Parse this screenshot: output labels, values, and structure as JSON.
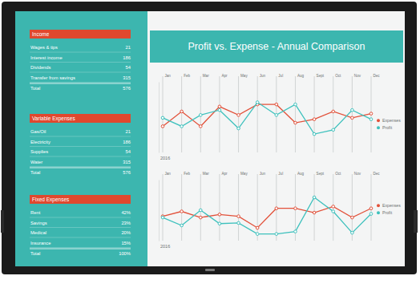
{
  "title": "Profit vs. Expense - Annual Comparison",
  "tables": [
    {
      "title": "Income",
      "rows": [
        [
          "Wages & tips",
          "21"
        ],
        [
          "Interest income",
          "186"
        ],
        [
          "Dividends",
          "54"
        ],
        [
          "Transfer from savings",
          "315"
        ]
      ],
      "total": [
        "Total",
        "576"
      ]
    },
    {
      "title": "Variable Expenses",
      "rows": [
        [
          "Gas/Oil",
          "21"
        ],
        [
          "Electricity",
          "186"
        ],
        [
          "Supplies",
          "54"
        ],
        [
          "Water",
          "315"
        ]
      ],
      "total": [
        "Total",
        "576"
      ]
    },
    {
      "title": "Fixed Expenses",
      "rows": [
        [
          "Rent",
          "42%"
        ],
        [
          "Savings",
          "23%"
        ],
        [
          "Medical",
          "20%"
        ],
        [
          "Insurance",
          "15%"
        ]
      ],
      "total": [
        "Total",
        "100%"
      ]
    }
  ],
  "chart_data": [
    {
      "type": "line",
      "categories": [
        "Jan",
        "Feb",
        "Mar",
        "Apr",
        "May",
        "Jun",
        "Jul",
        "Aug",
        "Sept",
        "Oct",
        "Nov",
        "Dec"
      ],
      "series": [
        {
          "name": "Expenses",
          "color": "#e2513a",
          "marker": "circle",
          "values": [
            37,
            58,
            37,
            65,
            53,
            68,
            68,
            42,
            47,
            58,
            49,
            55
          ]
        },
        {
          "name": "Profit",
          "color": "#3ec1bd",
          "marker": "circle",
          "values": [
            49,
            37,
            53,
            60,
            34,
            71,
            53,
            68,
            26,
            32,
            60,
            47
          ]
        }
      ],
      "ylim": [
        0,
        100
      ],
      "tick_labels": "x",
      "grid": true,
      "legend": "right",
      "annotation": "2016"
    },
    {
      "type": "line",
      "categories": [
        "Jan",
        "Feb",
        "Mar",
        "Apr",
        "May",
        "Jun",
        "Jul",
        "Aug",
        "Sept",
        "Oct",
        "Nov",
        "Dec"
      ],
      "series": [
        {
          "name": "Expenses",
          "color": "#e2513a",
          "marker": "circle",
          "values": [
            40,
            48,
            38,
            43,
            40,
            21,
            53,
            53,
            46,
            56,
            38,
            53
          ]
        },
        {
          "name": "Profit",
          "color": "#3ec1bd",
          "marker": "circle",
          "values": [
            38,
            25,
            50,
            28,
            29,
            11,
            11,
            15,
            71,
            48,
            13,
            44
          ]
        }
      ],
      "ylim": [
        0,
        100
      ],
      "tick_labels": "x",
      "grid": true,
      "legend": "right",
      "annotation": "2016"
    }
  ]
}
